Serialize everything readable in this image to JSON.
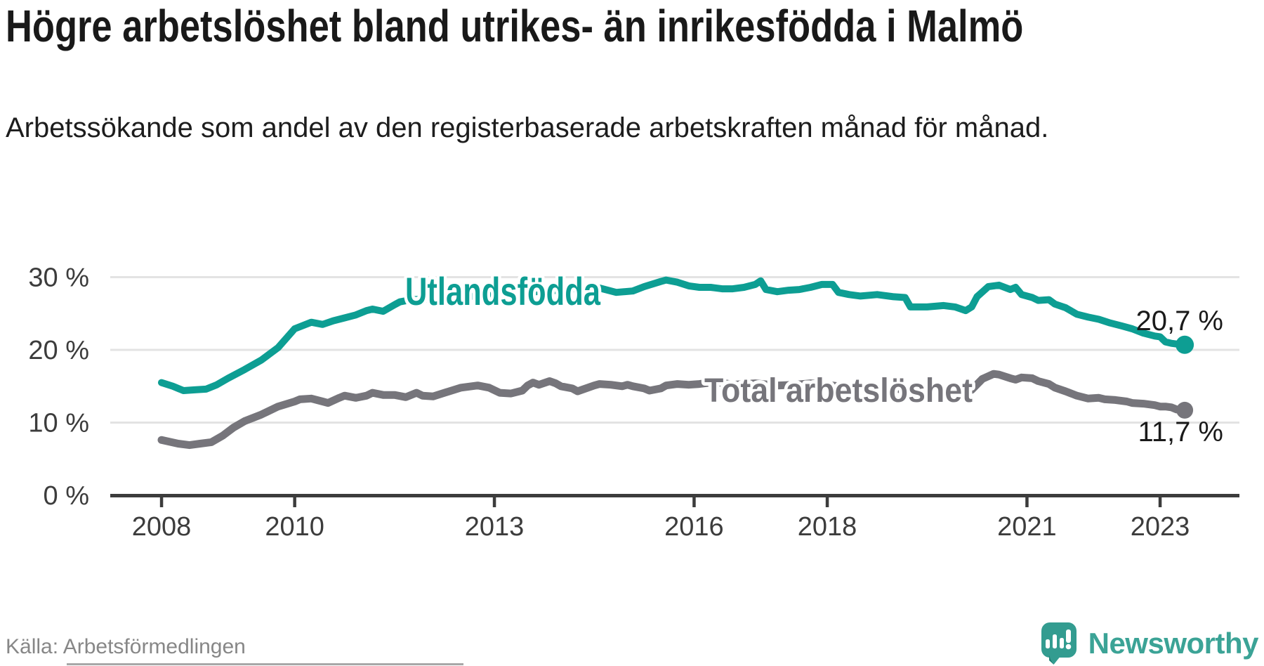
{
  "title": "Högre arbetslöshet bland utrikes- än inrikesfödda i Malmö",
  "subtitle": "Arbetssökande som andel av den registerbaserade arbetskraften månad för månad.",
  "source": "Källa: Arbetsförmedlingen",
  "branding": {
    "name": "Newsworthy",
    "logo_icon": "newsworthy-speech-bubble-bar-chart-icon",
    "color": "#3BA396"
  },
  "colors": {
    "foreign_born_line": "#0D9E93",
    "total_line": "#76757B",
    "gridline": "#E3E3E3",
    "axis": "#3C3C3C",
    "value_label": "#1A1A1A",
    "title_text": "#191919",
    "source_text": "#878787"
  },
  "chart_data": {
    "type": "line",
    "title": "Högre arbetslöshet bland utrikes- än inrikesfödda i Malmö",
    "xlabel": "",
    "ylabel": "",
    "x_unit": "decimal_year",
    "x_range": [
      2008.0,
      2023.4
    ],
    "ylim": [
      0,
      30
    ],
    "grid": "horizontal",
    "legend_position": "inline-labels",
    "y_ticks": [
      {
        "value": 0,
        "label": "0 %"
      },
      {
        "value": 10,
        "label": "10 %"
      },
      {
        "value": 20,
        "label": "20 %"
      },
      {
        "value": 30,
        "label": "30 %"
      }
    ],
    "x_ticks": [
      {
        "value": 2008,
        "label": "2008"
      },
      {
        "value": 2010,
        "label": "2010"
      },
      {
        "value": 2013,
        "label": "2013"
      },
      {
        "value": 2016,
        "label": "2016"
      },
      {
        "value": 2018,
        "label": "2018"
      },
      {
        "value": 2021,
        "label": "2021"
      },
      {
        "value": 2023,
        "label": "2023"
      }
    ],
    "series": [
      {
        "name": "Utlandsfödda",
        "color": "#0D9E93",
        "end_label": "20,7 %",
        "end_value": 20.7,
        "points": [
          [
            2008.0,
            15.5
          ],
          [
            2008.17,
            15.0
          ],
          [
            2008.33,
            14.4
          ],
          [
            2008.5,
            14.5
          ],
          [
            2008.67,
            14.6
          ],
          [
            2008.83,
            15.2
          ],
          [
            2009.0,
            16.1
          ],
          [
            2009.25,
            17.3
          ],
          [
            2009.5,
            18.6
          ],
          [
            2009.75,
            20.3
          ],
          [
            2010.0,
            22.9
          ],
          [
            2010.25,
            23.8
          ],
          [
            2010.42,
            23.5
          ],
          [
            2010.58,
            24.0
          ],
          [
            2010.75,
            24.4
          ],
          [
            2010.92,
            24.8
          ],
          [
            2011.08,
            25.4
          ],
          [
            2011.17,
            25.6
          ],
          [
            2011.33,
            25.3
          ],
          [
            2011.5,
            26.2
          ],
          [
            2011.58,
            26.6
          ],
          [
            2011.75,
            26.9
          ],
          [
            2012.0,
            27.0
          ],
          [
            2012.25,
            27.1
          ],
          [
            2012.5,
            27.3
          ],
          [
            2012.75,
            27.4
          ],
          [
            2013.0,
            27.5
          ],
          [
            2013.25,
            27.7
          ],
          [
            2013.5,
            27.9
          ],
          [
            2013.75,
            28.1
          ],
          [
            2014.0,
            28.2
          ],
          [
            2014.25,
            28.5
          ],
          [
            2014.42,
            28.7
          ],
          [
            2014.58,
            28.5
          ],
          [
            2014.83,
            27.9
          ],
          [
            2015.08,
            28.1
          ],
          [
            2015.25,
            28.7
          ],
          [
            2015.5,
            29.4
          ],
          [
            2015.58,
            29.6
          ],
          [
            2015.75,
            29.3
          ],
          [
            2015.92,
            28.8
          ],
          [
            2016.08,
            28.6
          ],
          [
            2016.25,
            28.6
          ],
          [
            2016.42,
            28.4
          ],
          [
            2016.58,
            28.4
          ],
          [
            2016.75,
            28.6
          ],
          [
            2016.92,
            29.0
          ],
          [
            2017.0,
            29.5
          ],
          [
            2017.08,
            28.3
          ],
          [
            2017.25,
            28.0
          ],
          [
            2017.42,
            28.2
          ],
          [
            2017.58,
            28.3
          ],
          [
            2017.75,
            28.6
          ],
          [
            2017.92,
            29.0
          ],
          [
            2018.08,
            29.0
          ],
          [
            2018.17,
            27.9
          ],
          [
            2018.33,
            27.6
          ],
          [
            2018.5,
            27.4
          ],
          [
            2018.75,
            27.6
          ],
          [
            2019.0,
            27.3
          ],
          [
            2019.17,
            27.2
          ],
          [
            2019.25,
            25.9
          ],
          [
            2019.5,
            25.9
          ],
          [
            2019.75,
            26.1
          ],
          [
            2019.92,
            25.9
          ],
          [
            2020.08,
            25.4
          ],
          [
            2020.17,
            25.9
          ],
          [
            2020.25,
            27.3
          ],
          [
            2020.42,
            28.7
          ],
          [
            2020.58,
            28.9
          ],
          [
            2020.75,
            28.3
          ],
          [
            2020.83,
            28.6
          ],
          [
            2020.92,
            27.6
          ],
          [
            2021.08,
            27.2
          ],
          [
            2021.17,
            26.8
          ],
          [
            2021.33,
            26.9
          ],
          [
            2021.42,
            26.3
          ],
          [
            2021.58,
            25.8
          ],
          [
            2021.75,
            24.9
          ],
          [
            2021.92,
            24.5
          ],
          [
            2022.08,
            24.2
          ],
          [
            2022.25,
            23.7
          ],
          [
            2022.42,
            23.3
          ],
          [
            2022.58,
            22.9
          ],
          [
            2022.75,
            22.3
          ],
          [
            2022.92,
            21.9
          ],
          [
            2023.0,
            21.8
          ],
          [
            2023.08,
            21.1
          ],
          [
            2023.17,
            20.9
          ],
          [
            2023.25,
            20.8
          ],
          [
            2023.37,
            20.7
          ]
        ]
      },
      {
        "name": "Total arbetslöshet",
        "color": "#76757B",
        "end_label": "11,7 %",
        "end_value": 11.7,
        "points": [
          [
            2008.0,
            7.6
          ],
          [
            2008.25,
            7.1
          ],
          [
            2008.42,
            6.9
          ],
          [
            2008.58,
            7.1
          ],
          [
            2008.75,
            7.3
          ],
          [
            2008.92,
            8.2
          ],
          [
            2009.08,
            9.3
          ],
          [
            2009.25,
            10.2
          ],
          [
            2009.5,
            11.1
          ],
          [
            2009.75,
            12.2
          ],
          [
            2010.0,
            12.9
          ],
          [
            2010.08,
            13.2
          ],
          [
            2010.25,
            13.3
          ],
          [
            2010.42,
            12.9
          ],
          [
            2010.5,
            12.7
          ],
          [
            2010.67,
            13.4
          ],
          [
            2010.75,
            13.7
          ],
          [
            2010.92,
            13.4
          ],
          [
            2011.08,
            13.7
          ],
          [
            2011.17,
            14.1
          ],
          [
            2011.33,
            13.8
          ],
          [
            2011.5,
            13.8
          ],
          [
            2011.67,
            13.5
          ],
          [
            2011.83,
            14.1
          ],
          [
            2011.92,
            13.7
          ],
          [
            2012.08,
            13.6
          ],
          [
            2012.25,
            14.1
          ],
          [
            2012.5,
            14.8
          ],
          [
            2012.75,
            15.1
          ],
          [
            2012.92,
            14.8
          ],
          [
            2013.08,
            14.1
          ],
          [
            2013.25,
            14.0
          ],
          [
            2013.42,
            14.4
          ],
          [
            2013.5,
            15.1
          ],
          [
            2013.58,
            15.5
          ],
          [
            2013.67,
            15.2
          ],
          [
            2013.83,
            15.7
          ],
          [
            2013.92,
            15.4
          ],
          [
            2014.0,
            15.0
          ],
          [
            2014.17,
            14.7
          ],
          [
            2014.25,
            14.3
          ],
          [
            2014.5,
            15.1
          ],
          [
            2014.58,
            15.3
          ],
          [
            2014.75,
            15.2
          ],
          [
            2014.92,
            15.0
          ],
          [
            2015.0,
            15.2
          ],
          [
            2015.08,
            15.0
          ],
          [
            2015.25,
            14.7
          ],
          [
            2015.33,
            14.4
          ],
          [
            2015.5,
            14.7
          ],
          [
            2015.58,
            15.1
          ],
          [
            2015.75,
            15.3
          ],
          [
            2015.92,
            15.2
          ],
          [
            2016.08,
            15.3
          ],
          [
            2016.25,
            15.5
          ],
          [
            2016.42,
            15.5
          ],
          [
            2016.58,
            15.2
          ],
          [
            2016.75,
            15.3
          ],
          [
            2016.92,
            15.4
          ],
          [
            2017.25,
            15.1
          ],
          [
            2017.5,
            15.2
          ],
          [
            2017.75,
            15.4
          ],
          [
            2018.0,
            15.2
          ],
          [
            2018.25,
            14.9
          ],
          [
            2018.5,
            14.8
          ],
          [
            2018.75,
            14.9
          ],
          [
            2019.0,
            14.7
          ],
          [
            2019.25,
            14.4
          ],
          [
            2019.5,
            14.3
          ],
          [
            2019.75,
            14.4
          ],
          [
            2020.0,
            14.3
          ],
          [
            2020.17,
            14.5
          ],
          [
            2020.33,
            16.0
          ],
          [
            2020.5,
            16.7
          ],
          [
            2020.58,
            16.6
          ],
          [
            2020.75,
            16.1
          ],
          [
            2020.83,
            15.9
          ],
          [
            2020.92,
            16.2
          ],
          [
            2021.08,
            16.1
          ],
          [
            2021.17,
            15.7
          ],
          [
            2021.33,
            15.3
          ],
          [
            2021.42,
            14.8
          ],
          [
            2021.58,
            14.3
          ],
          [
            2021.75,
            13.7
          ],
          [
            2021.92,
            13.3
          ],
          [
            2022.08,
            13.4
          ],
          [
            2022.17,
            13.2
          ],
          [
            2022.33,
            13.1
          ],
          [
            2022.5,
            12.9
          ],
          [
            2022.58,
            12.7
          ],
          [
            2022.75,
            12.6
          ],
          [
            2022.92,
            12.4
          ],
          [
            2023.0,
            12.2
          ],
          [
            2023.08,
            12.2
          ],
          [
            2023.17,
            12.1
          ],
          [
            2023.25,
            11.8
          ],
          [
            2023.37,
            11.7
          ]
        ]
      }
    ]
  }
}
